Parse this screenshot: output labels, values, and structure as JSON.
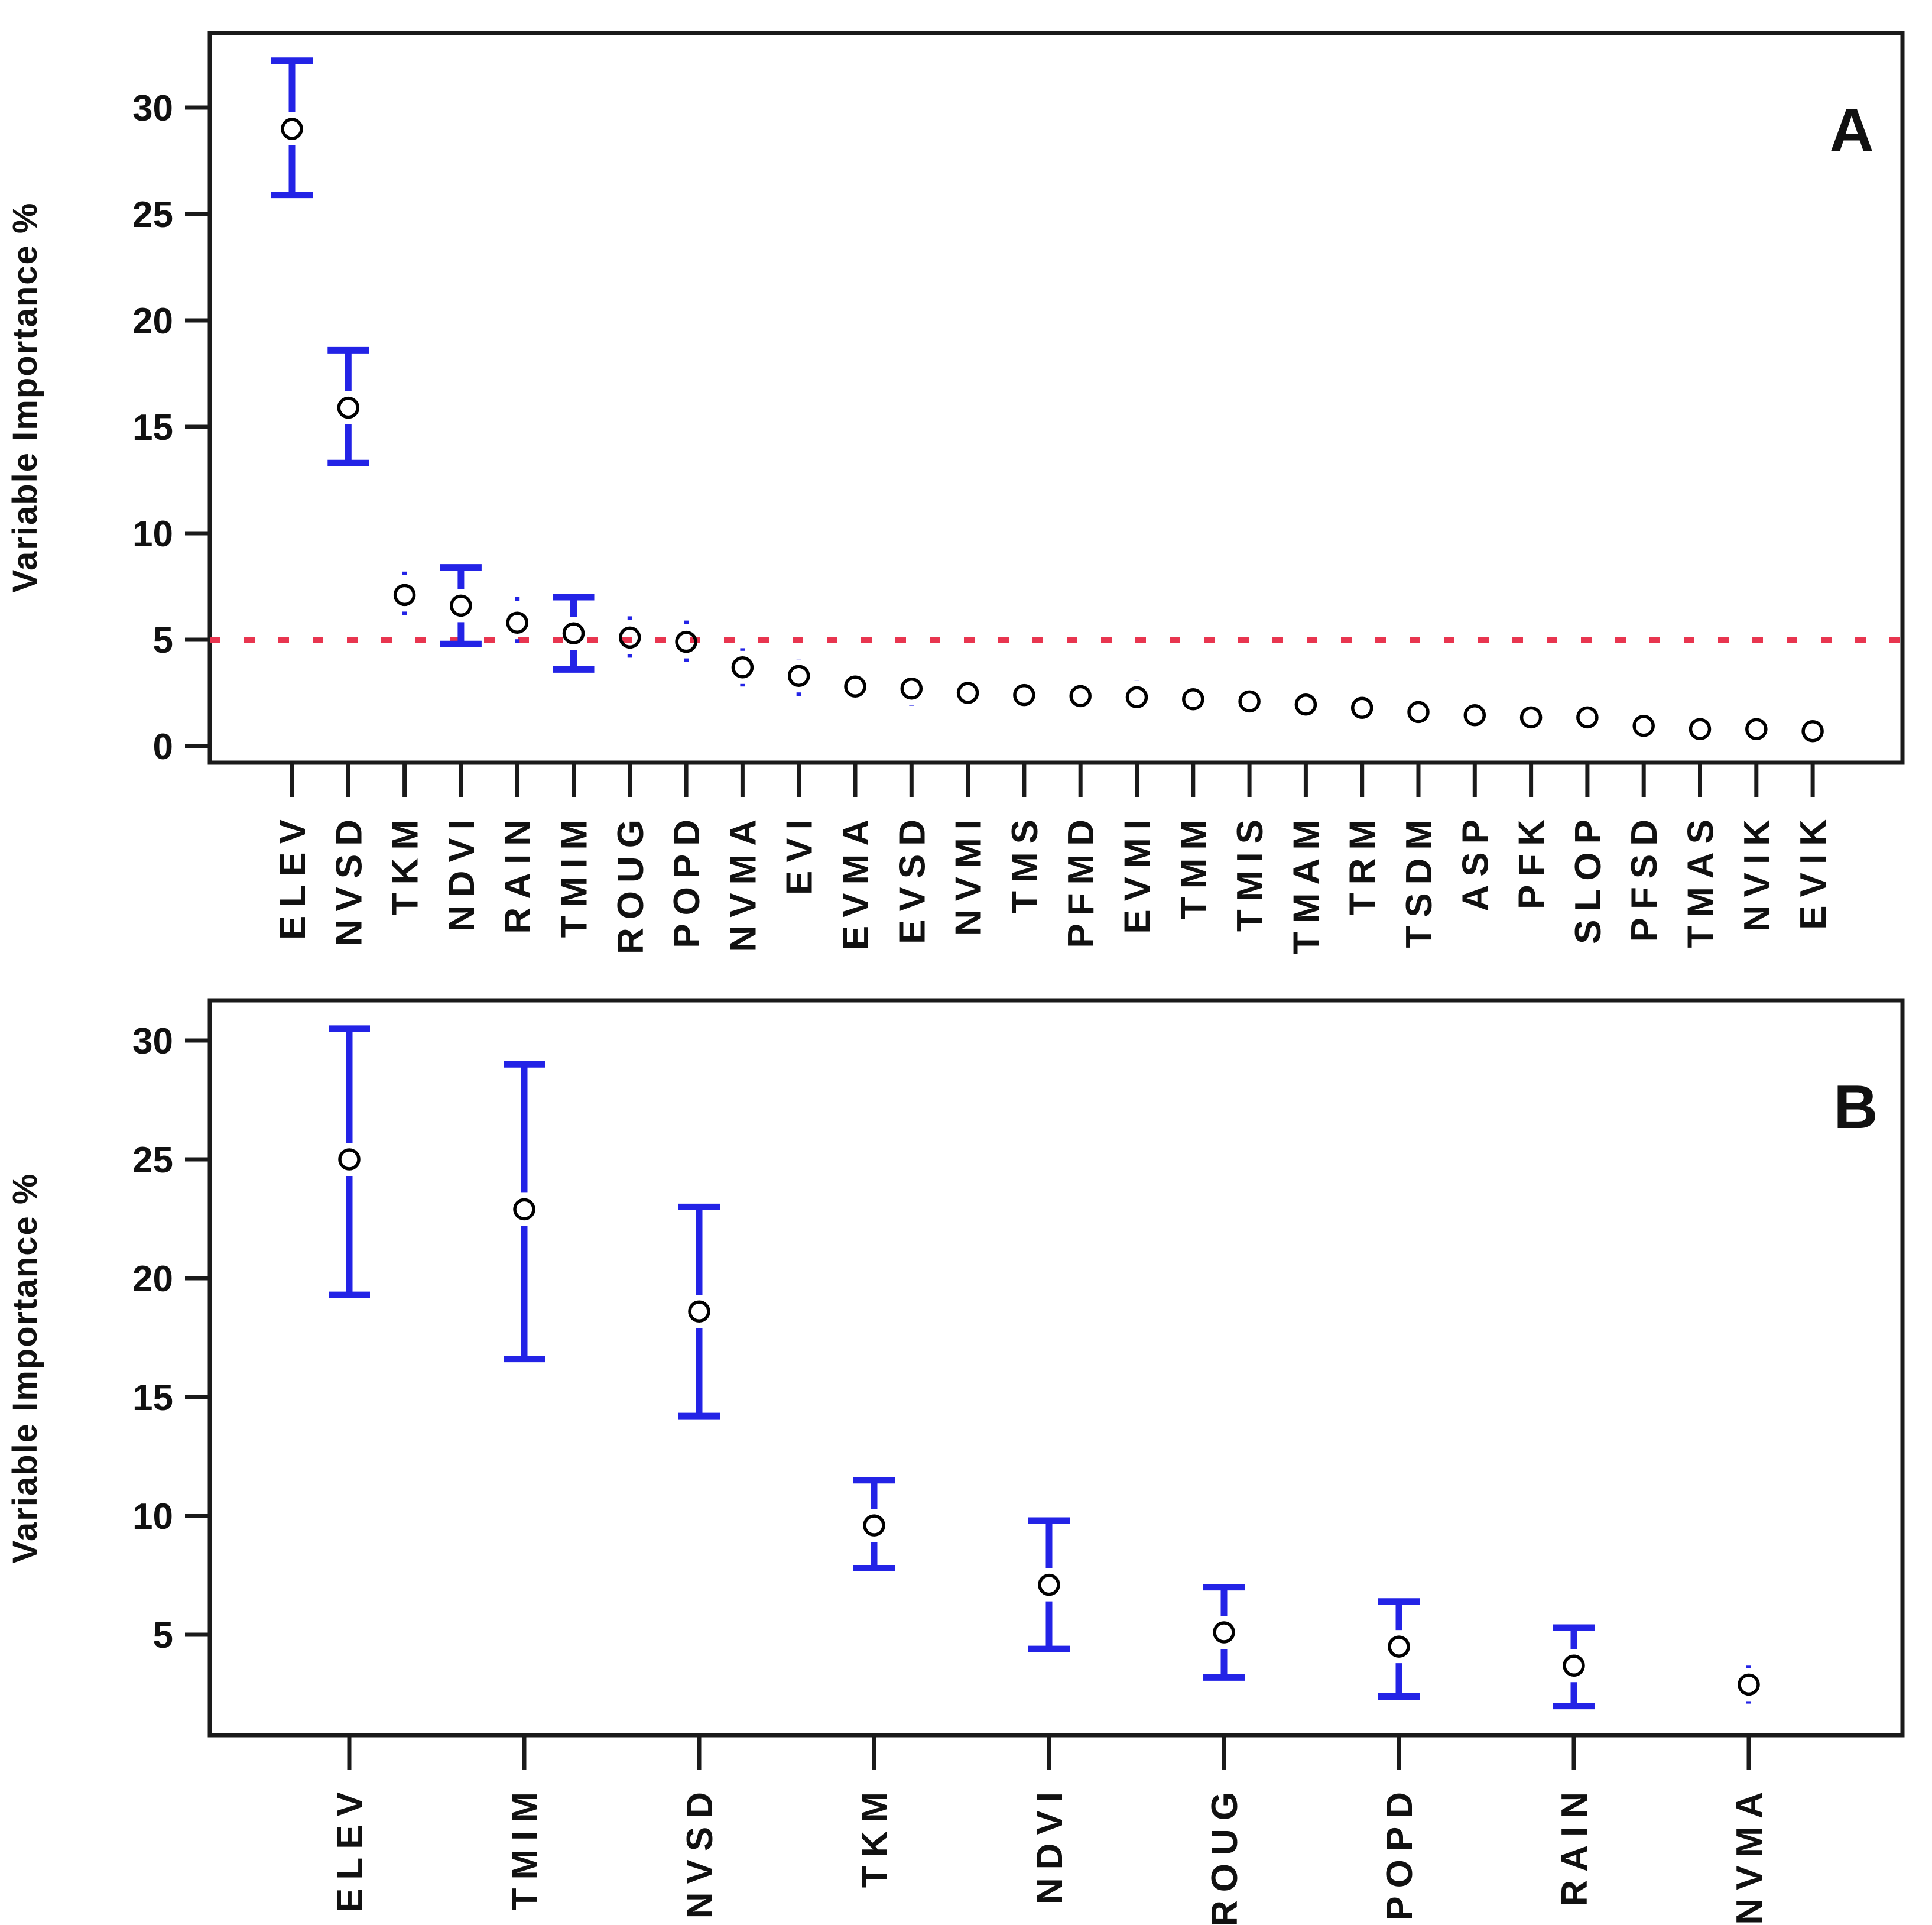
{
  "figure": {
    "background": "#ffffff",
    "axis_color": "#1a1a1a",
    "marker_color": "#000000",
    "errorbar_color": "#2323e6",
    "threshold_color": "#e8354f"
  },
  "chart_data": [
    {
      "type": "scatter",
      "panel_label": "A",
      "title": "",
      "xlabel": "",
      "ylabel": "Variable Importance %",
      "ylim": [
        -0.7,
        33.5
      ],
      "yticks": [
        0,
        5,
        10,
        15,
        20,
        25,
        30
      ],
      "threshold_line": 5,
      "grid": false,
      "legend": "none",
      "points": [
        {
          "label": "ELEV",
          "value": 29.0,
          "lo": 25.9,
          "hi": 32.2,
          "style": "solid"
        },
        {
          "label": "NVSD",
          "value": 15.9,
          "lo": 13.3,
          "hi": 18.6,
          "style": "solid"
        },
        {
          "label": "TKM",
          "value": 7.1,
          "lo": 6.0,
          "hi": 8.2,
          "style": "dotted"
        },
        {
          "label": "NDVI",
          "value": 6.6,
          "lo": 4.8,
          "hi": 8.4,
          "style": "solid"
        },
        {
          "label": "RAIN",
          "value": 5.8,
          "lo": 4.6,
          "hi": 7.0,
          "style": "dotted"
        },
        {
          "label": "TMIM",
          "value": 5.3,
          "lo": 3.6,
          "hi": 7.0,
          "style": "solid"
        },
        {
          "label": "ROUG",
          "value": 5.1,
          "lo": 4.1,
          "hi": 6.1,
          "style": "dotted"
        },
        {
          "label": "POPD",
          "value": 4.9,
          "lo": 3.8,
          "hi": 5.9,
          "style": "dotted"
        },
        {
          "label": "NVMA",
          "value": 3.7,
          "lo": 2.8,
          "hi": 4.6,
          "style": "dotted"
        },
        {
          "label": "EVI",
          "value": 3.3,
          "lo": 2.1,
          "hi": 4.1,
          "style": "dotted"
        },
        {
          "label": "EVMA",
          "value": 2.8,
          "lo": 2.2,
          "hi": 3.5,
          "style": "dotted"
        },
        {
          "label": "EVSD",
          "value": 2.7,
          "lo": 1.9,
          "hi": 3.5,
          "style": "dotted"
        },
        {
          "label": "NVMI",
          "value": 2.5,
          "lo": 1.8,
          "hi": 3.2,
          "style": "dotted"
        },
        {
          "label": "TMS",
          "value": 2.4,
          "lo": 1.7,
          "hi": 3.1,
          "style": "dotted"
        },
        {
          "label": "PFMD",
          "value": 2.35,
          "lo": 1.7,
          "hi": 3.0,
          "style": "dotted"
        },
        {
          "label": "EVMI",
          "value": 2.3,
          "lo": 1.5,
          "hi": 3.1,
          "style": "dotted"
        },
        {
          "label": "TMM",
          "value": 2.2,
          "lo": 1.5,
          "hi": 2.9,
          "style": "dotted"
        },
        {
          "label": "TMIS",
          "value": 2.1,
          "lo": 1.4,
          "hi": 2.8,
          "style": "dotted"
        },
        {
          "label": "TMAM",
          "value": 1.95,
          "lo": 1.3,
          "hi": 2.6,
          "style": "dotted"
        },
        {
          "label": "TRM",
          "value": 1.8,
          "lo": 1.2,
          "hi": 2.4,
          "style": "dotted"
        },
        {
          "label": "TSDM",
          "value": 1.6,
          "lo": 1.0,
          "hi": 2.2,
          "style": "dotted"
        },
        {
          "label": "ASP",
          "value": 1.45,
          "lo": 1.2,
          "hi": 1.7,
          "style": "dotted"
        },
        {
          "label": "PFK",
          "value": 1.35,
          "lo": 1.1,
          "hi": 1.6,
          "style": "dotted"
        },
        {
          "label": "SLOP",
          "value": 1.35,
          "lo": 0.8,
          "hi": 1.9,
          "style": "dotted"
        },
        {
          "label": "PFSD",
          "value": 0.95,
          "lo": 0.7,
          "hi": 1.2,
          "style": "dotted"
        },
        {
          "label": "TMAS",
          "value": 0.8,
          "lo": 0.6,
          "hi": 1.0,
          "style": "dotted"
        },
        {
          "label": "NVIK",
          "value": 0.8,
          "lo": 0.5,
          "hi": 1.1,
          "style": "dotted"
        },
        {
          "label": "EVIK",
          "value": 0.7,
          "lo": 0.4,
          "hi": 1.0,
          "style": "dotted"
        }
      ]
    },
    {
      "type": "scatter",
      "panel_label": "B",
      "title": "",
      "xlabel": "",
      "ylabel": "Variable Importance %",
      "ylim": [
        0.8,
        31.7
      ],
      "yticks": [
        5,
        10,
        15,
        20,
        25,
        30
      ],
      "threshold_line": null,
      "grid": false,
      "legend": "none",
      "points": [
        {
          "label": "ELEV",
          "value": 25.0,
          "lo": 19.3,
          "hi": 30.5,
          "style": "solid"
        },
        {
          "label": "TMIM",
          "value": 22.9,
          "lo": 16.6,
          "hi": 29.0,
          "style": "solid"
        },
        {
          "label": "NVSD",
          "value": 18.6,
          "lo": 14.2,
          "hi": 23.0,
          "style": "solid"
        },
        {
          "label": "TKM",
          "value": 9.6,
          "lo": 7.8,
          "hi": 11.5,
          "style": "solid"
        },
        {
          "label": "NDVI",
          "value": 7.1,
          "lo": 4.4,
          "hi": 9.8,
          "style": "solid"
        },
        {
          "label": "ROUG",
          "value": 5.1,
          "lo": 3.2,
          "hi": 7.0,
          "style": "solid"
        },
        {
          "label": "POPD",
          "value": 4.5,
          "lo": 2.4,
          "hi": 6.4,
          "style": "solid"
        },
        {
          "label": "RAIN",
          "value": 3.7,
          "lo": 2.0,
          "hi": 5.3,
          "style": "solid"
        },
        {
          "label": "NVMA",
          "value": 2.9,
          "lo": 2.1,
          "hi": 3.7,
          "style": "dotted"
        }
      ]
    }
  ]
}
